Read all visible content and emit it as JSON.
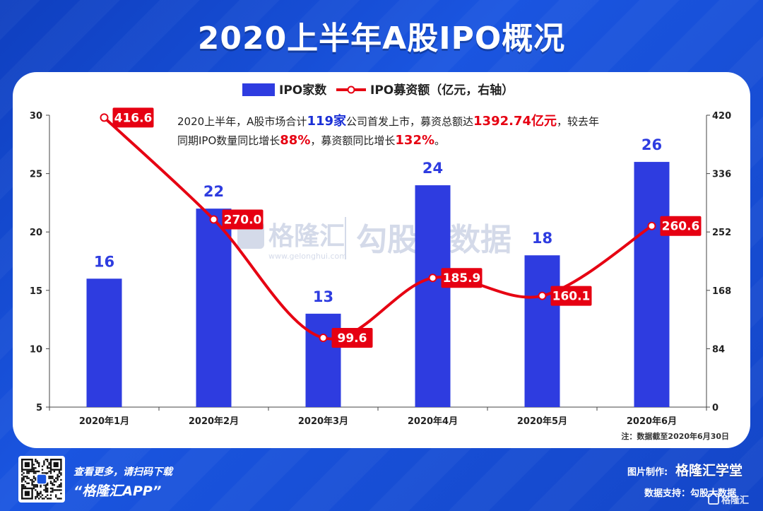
{
  "page_title": "2020上半年A股IPO概况",
  "summary": {
    "line1_pre": "2020上半年，A股市场合计",
    "line1_h1": "119家",
    "line1_mid": "公司首发上市，募资总额达",
    "line1_h2": "1392.74亿元",
    "line1_post": "，较去年",
    "line2_pre": "同期IPO数量同比增长",
    "line2_h1": "88%",
    "line2_mid": "，募资额同比增长",
    "line2_h2": "132%",
    "line2_post": "。"
  },
  "watermark": {
    "brand": "格隆汇",
    "url": "www.gelonghui.com",
    "data_brand": "勾股大数据"
  },
  "note": "注：数据截至2020年6月30日",
  "footer": {
    "scan_text": "查看更多，请扫码下载",
    "app_name": "“格隆汇APP”",
    "made_by_label": "图片制作:",
    "made_by_brand": "格隆汇学堂",
    "data_support": "数据支持：勾股大数据",
    "corner_logo": "格隆汇"
  },
  "colors": {
    "bar": "#2e3ce0",
    "bar_label": "#2e3ce0",
    "line": "#e60012",
    "highlight_blue": "#1a2fd6",
    "highlight_red": "#e60012"
  },
  "chart_data": {
    "type": "bar",
    "categories": [
      "2020年1月",
      "2020年2月",
      "2020年3月",
      "2020年4月",
      "2020年5月",
      "2020年6月"
    ],
    "series": [
      {
        "name": "IPO家数",
        "type": "bar",
        "axis": "left",
        "values": [
          16,
          22,
          13,
          24,
          18,
          26
        ]
      },
      {
        "name": "IPO募资额（亿元，右轴）",
        "type": "line",
        "axis": "right",
        "values": [
          416.6,
          270.0,
          99.6,
          185.9,
          160.1,
          260.6
        ]
      }
    ],
    "value_labels_left": [
      "16",
      "22",
      "13",
      "24",
      "18",
      "26"
    ],
    "value_labels_right": [
      "416.6",
      "270.0",
      "99.6",
      "185.9",
      "160.1",
      "260.6"
    ],
    "ylim": [
      5,
      30
    ],
    "y2lim": [
      0,
      420
    ],
    "yticks": [
      "5",
      "10",
      "15",
      "20",
      "25",
      "30"
    ],
    "y2ticks": [
      "0",
      "84",
      "168",
      "252",
      "336",
      "420"
    ],
    "legend_position": "top-center",
    "grid": false
  }
}
